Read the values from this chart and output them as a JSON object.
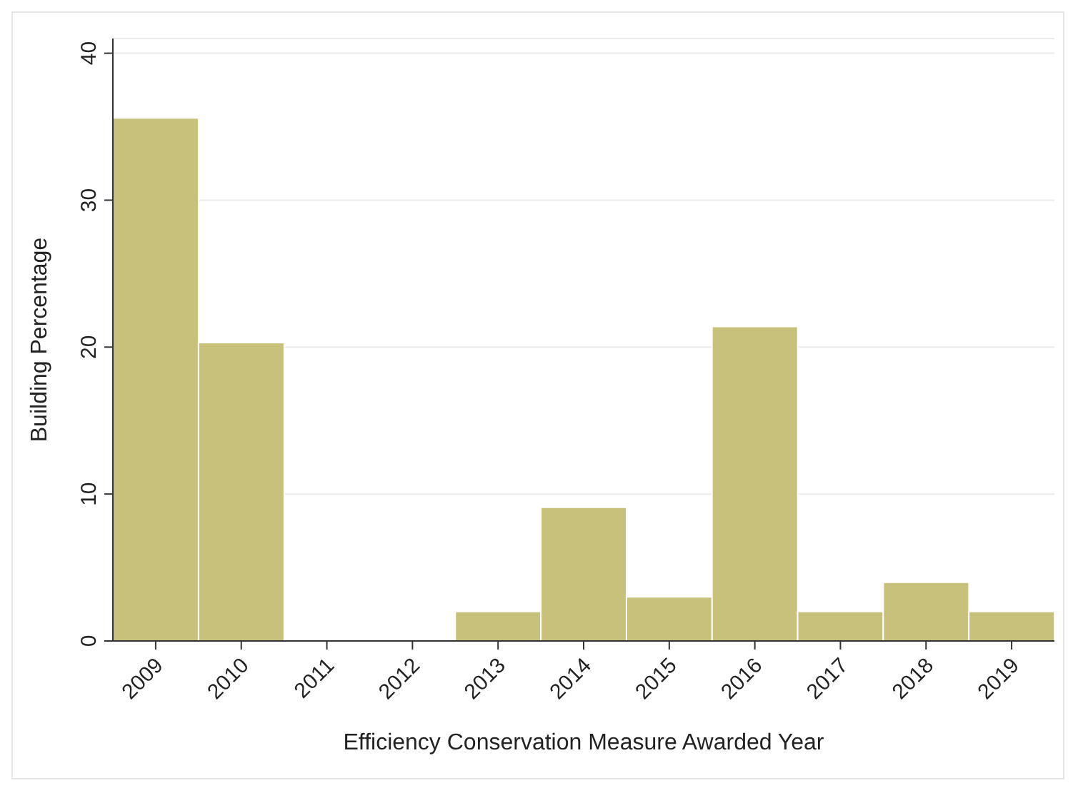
{
  "chart_data": {
    "type": "bar",
    "xlabel": "Efficiency Conservation Measure Awarded Year",
    "ylabel": "Building Percentage",
    "categories": [
      "2009",
      "2010",
      "2011",
      "2012",
      "2013",
      "2014",
      "2015",
      "2016",
      "2017",
      "2018",
      "2019"
    ],
    "values": [
      35.6,
      20.3,
      0,
      0,
      2.0,
      9.1,
      3.0,
      21.4,
      2.0,
      4.0,
      2.0
    ],
    "color": "#c8c17c",
    "ylim": [
      0,
      41
    ],
    "yticks": [
      0,
      10,
      20,
      30,
      40
    ],
    "grid": "y"
  }
}
